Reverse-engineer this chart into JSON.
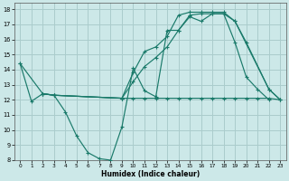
{
  "xlabel": "Humidex (Indice chaleur)",
  "bg_color": "#cce8e8",
  "grid_color": "#aacccc",
  "line_color": "#1a7a6a",
  "xlim": [
    -0.5,
    23.5
  ],
  "ylim": [
    8,
    18.4
  ],
  "xticks": [
    0,
    1,
    2,
    3,
    4,
    5,
    6,
    7,
    8,
    9,
    10,
    11,
    12,
    13,
    14,
    15,
    16,
    17,
    18,
    19,
    20,
    21,
    22,
    23
  ],
  "yticks": [
    8,
    9,
    10,
    11,
    12,
    13,
    14,
    15,
    16,
    17,
    18
  ],
  "series": [
    {
      "x": [
        0,
        1,
        2,
        3,
        4,
        5,
        6,
        7,
        8,
        9,
        10,
        11,
        12,
        13,
        14,
        15,
        16,
        17,
        18,
        19,
        20,
        21,
        22
      ],
      "y": [
        14.4,
        11.9,
        12.4,
        12.3,
        11.2,
        9.6,
        8.5,
        8.1,
        8.0,
        10.2,
        14.1,
        12.6,
        12.2,
        16.6,
        16.6,
        17.6,
        17.7,
        17.7,
        17.7,
        15.8,
        13.5,
        12.7,
        12.0
      ]
    },
    {
      "x": [
        0,
        2,
        3,
        9,
        10,
        11,
        12,
        13,
        14,
        15,
        16,
        17,
        18,
        19,
        20,
        21,
        22,
        23
      ],
      "y": [
        14.4,
        12.4,
        12.3,
        12.1,
        12.1,
        12.1,
        12.1,
        12.1,
        12.1,
        12.1,
        12.1,
        12.1,
        12.1,
        12.1,
        12.1,
        12.1,
        12.1,
        12.0
      ]
    },
    {
      "x": [
        2,
        3,
        9,
        10,
        11,
        12,
        13,
        14,
        15,
        16,
        17,
        18,
        19,
        22,
        23
      ],
      "y": [
        12.4,
        12.3,
        12.1,
        13.8,
        15.2,
        15.5,
        16.2,
        17.6,
        17.8,
        17.8,
        17.8,
        17.8,
        17.2,
        12.7,
        12.0
      ]
    },
    {
      "x": [
        2,
        3,
        9,
        10,
        11,
        12,
        13,
        14,
        15,
        16,
        17,
        18,
        19,
        20,
        22,
        23
      ],
      "y": [
        12.4,
        12.3,
        12.1,
        13.2,
        14.2,
        14.8,
        15.5,
        16.6,
        17.5,
        17.2,
        17.7,
        17.7,
        17.2,
        15.8,
        12.7,
        12.0
      ]
    }
  ]
}
